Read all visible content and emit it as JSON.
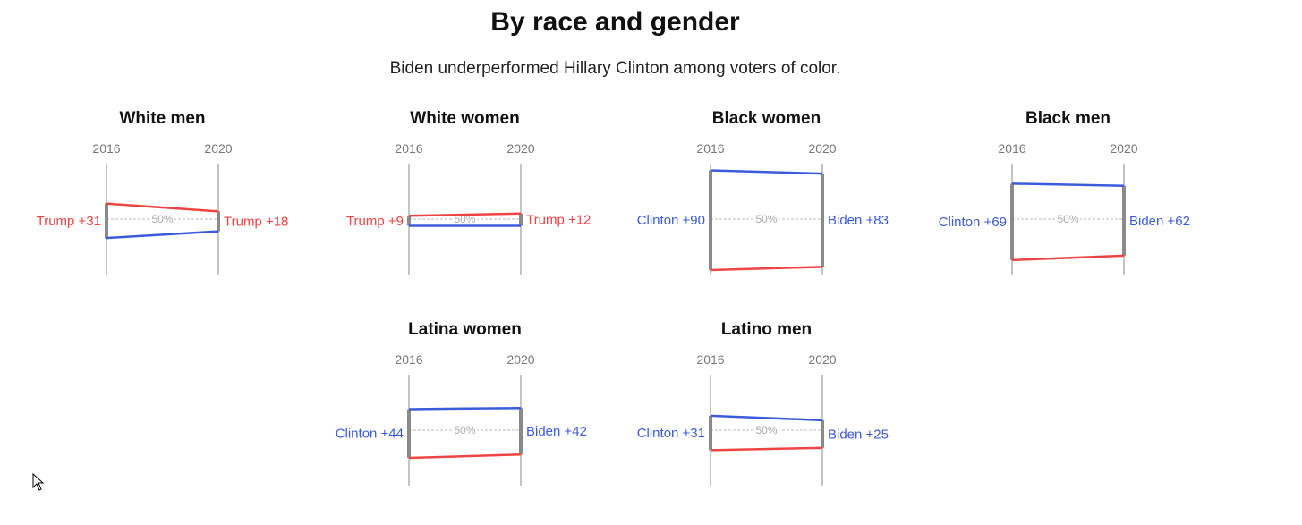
{
  "title": "By race and gender",
  "subtitle": "Biden underperformed Hillary Clinton among voters of color.",
  "colors": {
    "republican": "#ef4444",
    "democrat": "#3b5bdb",
    "axis": "#888888",
    "gap": "#8a8a8a",
    "midline": "#bbbbbb"
  },
  "chart_data": {
    "type": "line",
    "years": [
      "2016",
      "2020"
    ],
    "midline_label": "50%",
    "panels": [
      {
        "title": "White men",
        "left_label": "Trump +31",
        "right_label": "Trump +18",
        "leader": "rep",
        "rep": [
          64,
          57
        ],
        "dem": [
          33,
          39
        ]
      },
      {
        "title": "White women",
        "left_label": "Trump +9",
        "right_label": "Trump +12",
        "leader": "rep",
        "rep": [
          53,
          55
        ],
        "dem": [
          44,
          44
        ]
      },
      {
        "title": "Black women",
        "left_label": "Clinton +90",
        "right_label": "Biden +83",
        "leader": "dem",
        "rep": [
          4,
          7
        ],
        "dem": [
          94,
          91
        ]
      },
      {
        "title": "Black men",
        "left_label": "Clinton +69",
        "right_label": "Biden +62",
        "leader": "dem",
        "rep": [
          13,
          17
        ],
        "dem": [
          82,
          80
        ]
      },
      {
        "title": "Latina women",
        "left_label": "Clinton +44",
        "right_label": "Biden +42",
        "leader": "dem",
        "rep": [
          25,
          28
        ],
        "dem": [
          69,
          70
        ]
      },
      {
        "title": "Latino men",
        "left_label": "Clinton +31",
        "right_label": "Biden +25",
        "leader": "dem",
        "rep": [
          32,
          34
        ],
        "dem": [
          63,
          59
        ]
      }
    ]
  }
}
